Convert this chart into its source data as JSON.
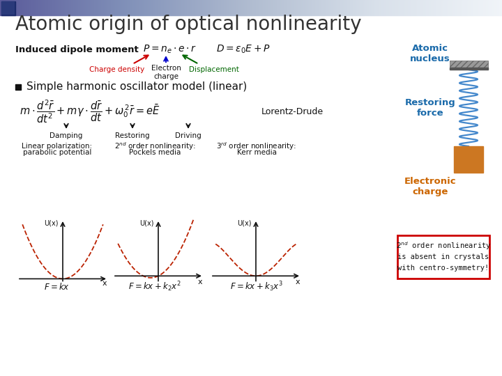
{
  "title": "Atomic origin of optical nonlinearity",
  "title_color": "#333333",
  "title_fontsize": 20,
  "bg_color": "#ffffff",
  "header_gradient_colors": [
    "#5a5a9a",
    "#8090b8",
    "#b0bcd0",
    "#d8e0ea",
    "#f0f4f8"
  ],
  "section1_label": "Induced dipole moment",
  "formula1": "$P = n_e \\cdot e \\cdot r$",
  "formula2": "$D = \\varepsilon_0 E + P$",
  "charge_density_label": "Charge density",
  "electron_charge_label": "Electron\ncharge",
  "displacement_label": "Displacement",
  "charge_density_color": "#cc0000",
  "electron_charge_color": "#0000cc",
  "displacement_color": "#006600",
  "bullet_text": "Simple harmonic oscillator model (linear)",
  "lorentz_label": "Lorentz-Drude",
  "damping_labels": [
    "Damping",
    "Restoring",
    "Driving"
  ],
  "graph_labels_line1": [
    "Linear polarization:",
    "2nd order nonlinearity:",
    "3rd order nonlinearity:"
  ],
  "graph_labels_line2": [
    "parabolic potential",
    "Pockels media",
    "Kerr media"
  ],
  "graph_formulas": [
    "$F = kx$",
    "$F = kx + k_2 x^2$",
    "$F = kx + k_3 x^3$"
  ],
  "atomic_nucleus_label": "Atomic\nnucleus",
  "restoring_force_label": "Restoring\nforce",
  "electronic_charge_label": "Electronic\ncharge",
  "side_label_color": "#1a6aaa",
  "electronic_charge_color": "#cc6600",
  "spring_color": "#4488cc",
  "block_color": "#cc7722",
  "note_text": "2nd order nonlinearity\nis absent in crystals\nwith centro-symmetry!",
  "note_border_color": "#cc0000",
  "curve_color": "#bb2200",
  "axis_color": "#111111",
  "hatch_color": "#999999",
  "hatch_bar_color": "#555555"
}
